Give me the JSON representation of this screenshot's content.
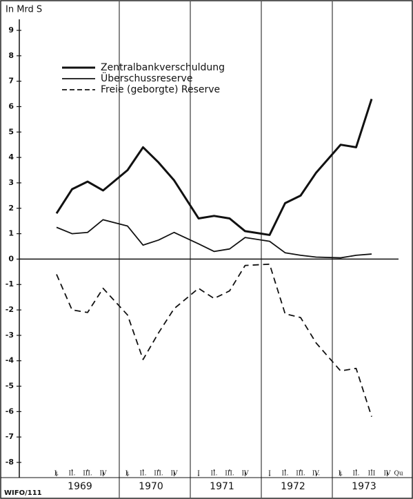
{
  "chart_data": {
    "type": "line",
    "y_label": "In Mrd S",
    "source": "WIFO/111",
    "x_unit": "Qu",
    "years": [
      "1969",
      "1970",
      "1971",
      "1972",
      "1973"
    ],
    "categories": [
      "I.",
      "II.",
      "III.",
      "IV",
      "I.",
      "II.",
      "III.",
      "IV",
      "I",
      "II.",
      "III.",
      "IV",
      "I",
      "II.",
      "III.",
      "IV.",
      "I.",
      "II.",
      "III",
      "IV"
    ],
    "series": [
      {
        "name": "Zentralbankverschuldung",
        "color": "#111111",
        "line_width": 3,
        "dashed": false,
        "values": [
          1.8,
          2.75,
          3.05,
          2.7,
          3.5,
          4.4,
          3.8,
          3.1,
          1.6,
          1.7,
          1.6,
          1.1,
          0.95,
          2.2,
          2.5,
          3.4,
          4.5,
          4.4,
          6.3,
          null
        ]
      },
      {
        "name": "Überschussreserve",
        "color": "#111111",
        "line_width": 1.8,
        "dashed": false,
        "values": [
          1.25,
          1.0,
          1.05,
          1.55,
          1.3,
          0.55,
          0.75,
          1.05,
          0.6,
          0.3,
          0.4,
          0.85,
          0.7,
          0.25,
          0.15,
          0.08,
          0.05,
          0.15,
          0.2,
          null
        ]
      },
      {
        "name": "Freie (geborgte) Reserve",
        "color": "#111111",
        "line_width": 1.8,
        "dashed": true,
        "values": [
          -0.6,
          -2.0,
          -2.1,
          -1.15,
          -2.2,
          -3.95,
          -2.9,
          -1.95,
          -1.15,
          -1.55,
          -1.25,
          -0.25,
          -0.2,
          -2.15,
          -2.3,
          -3.3,
          -4.4,
          -4.3,
          -6.2,
          null
        ]
      }
    ],
    "ylim": [
      -8,
      9
    ],
    "yticks": [
      -8,
      -7,
      -6,
      -5,
      -4,
      -3,
      -2,
      -1,
      0,
      1,
      2,
      3,
      4,
      5,
      6,
      7,
      8,
      9
    ]
  }
}
